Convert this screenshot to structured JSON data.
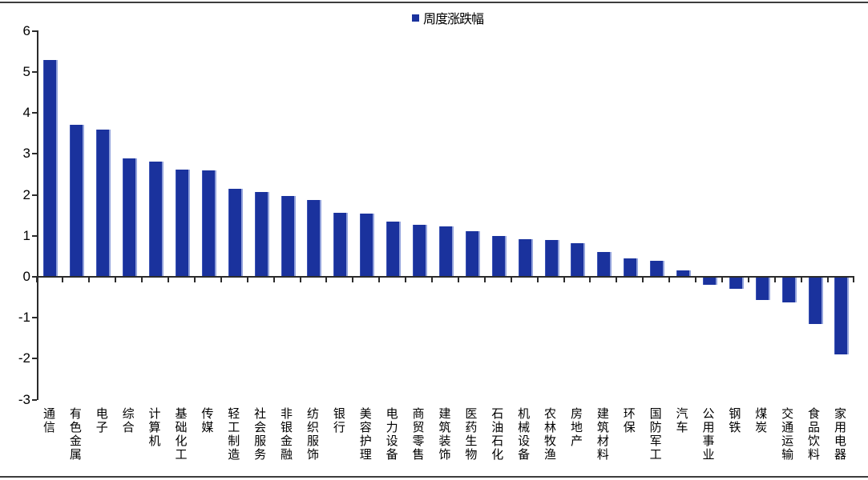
{
  "legend": {
    "label": "周度涨跌幅",
    "marker_color": "#1a329d"
  },
  "chart_data": {
    "type": "bar",
    "series_name": "周度涨跌幅",
    "categories": [
      "通信",
      "有色金属",
      "电子",
      "综合",
      "计算机",
      "基础化工",
      "传媒",
      "轻工制造",
      "社会服务",
      "非银金融",
      "纺织服饰",
      "银行",
      "美容护理",
      "电力设备",
      "商贸零售",
      "建筑装饰",
      "医药生物",
      "石油石化",
      "机械设备",
      "农林牧渔",
      "房地产",
      "建筑材料",
      "环保",
      "国防军工",
      "汽车",
      "公用事业",
      "钢铁",
      "煤炭",
      "交通运输",
      "食品饮料",
      "家用电器"
    ],
    "values": [
      5.28,
      3.7,
      3.57,
      2.87,
      2.79,
      2.59,
      2.57,
      2.13,
      2.06,
      1.95,
      1.85,
      1.54,
      1.53,
      1.33,
      1.25,
      1.21,
      1.09,
      0.98,
      0.9,
      0.88,
      0.81,
      0.58,
      0.42,
      0.37,
      0.14,
      -0.18,
      -0.28,
      -0.54,
      -0.6,
      -1.13,
      -1.87
    ],
    "y_ticks": [
      "6",
      "5",
      "4",
      "3",
      "2",
      "1",
      "0",
      "-1",
      "-2",
      "-3"
    ],
    "ylim": [
      -3,
      6
    ],
    "bar_color": "#1a329d",
    "grid": false,
    "legend_position": "top-center"
  }
}
